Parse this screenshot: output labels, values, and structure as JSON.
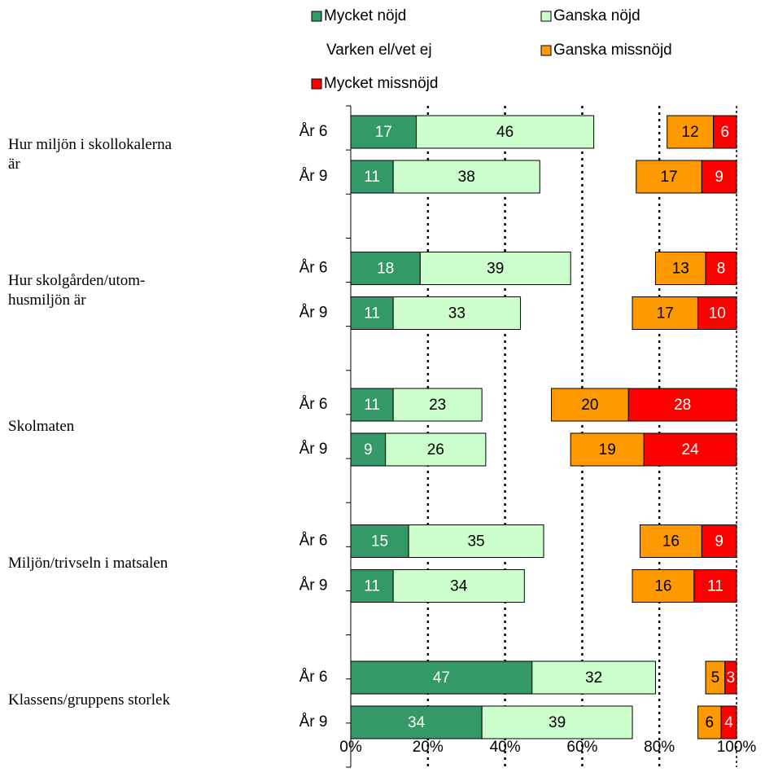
{
  "chart_data": {
    "type": "stacked-barh",
    "group_labels": [
      [
        "Hur miljön i skollokalerna",
        "är"
      ],
      [
        "Hur skolgården/utom-",
        "husmiljön är"
      ],
      [
        "Skolmaten"
      ],
      [
        "Miljön/trivseln i matsalen"
      ],
      [
        "Klassens/gruppens storlek"
      ]
    ],
    "categories": [
      "År 6",
      "År 9",
      "År 6",
      "År 9",
      "År 6",
      "År 9",
      "År 6",
      "År 9",
      "År 6",
      "År 9"
    ],
    "series": [
      {
        "name": "Mycket nöjd",
        "color": "#339966",
        "label_color": "#ffffff",
        "values": [
          17,
          11,
          18,
          11,
          11,
          9,
          15,
          11,
          47,
          34
        ]
      },
      {
        "name": "Ganska nöjd",
        "color": "#ccffcc",
        "label_color": "#000000",
        "values": [
          46,
          38,
          39,
          33,
          23,
          26,
          35,
          34,
          32,
          39
        ]
      },
      {
        "name": "Varken el/vet ej",
        "color": "none",
        "values": [
          19,
          25,
          22,
          29,
          18,
          22,
          25,
          28,
          13,
          17
        ]
      },
      {
        "name": "Ganska missnöjd",
        "color": "#ff9900",
        "label_color": "#000000",
        "values": [
          12,
          17,
          13,
          17,
          20,
          19,
          16,
          16,
          5,
          6
        ]
      },
      {
        "name": "Mycket missnöjd",
        "color": "#ff0000",
        "label_color": "#ffffff",
        "values": [
          6,
          9,
          8,
          10,
          28,
          24,
          9,
          11,
          3,
          4
        ]
      }
    ],
    "xlim": [
      0,
      100
    ],
    "xticks": [
      {
        "value": 0,
        "label": "0%"
      },
      {
        "value": 20,
        "label": "20%"
      },
      {
        "value": 40,
        "label": "40%"
      },
      {
        "value": 60,
        "label": "60%"
      },
      {
        "value": 80,
        "label": "80%"
      },
      {
        "value": 100,
        "label": "100%"
      }
    ],
    "grid": true
  }
}
